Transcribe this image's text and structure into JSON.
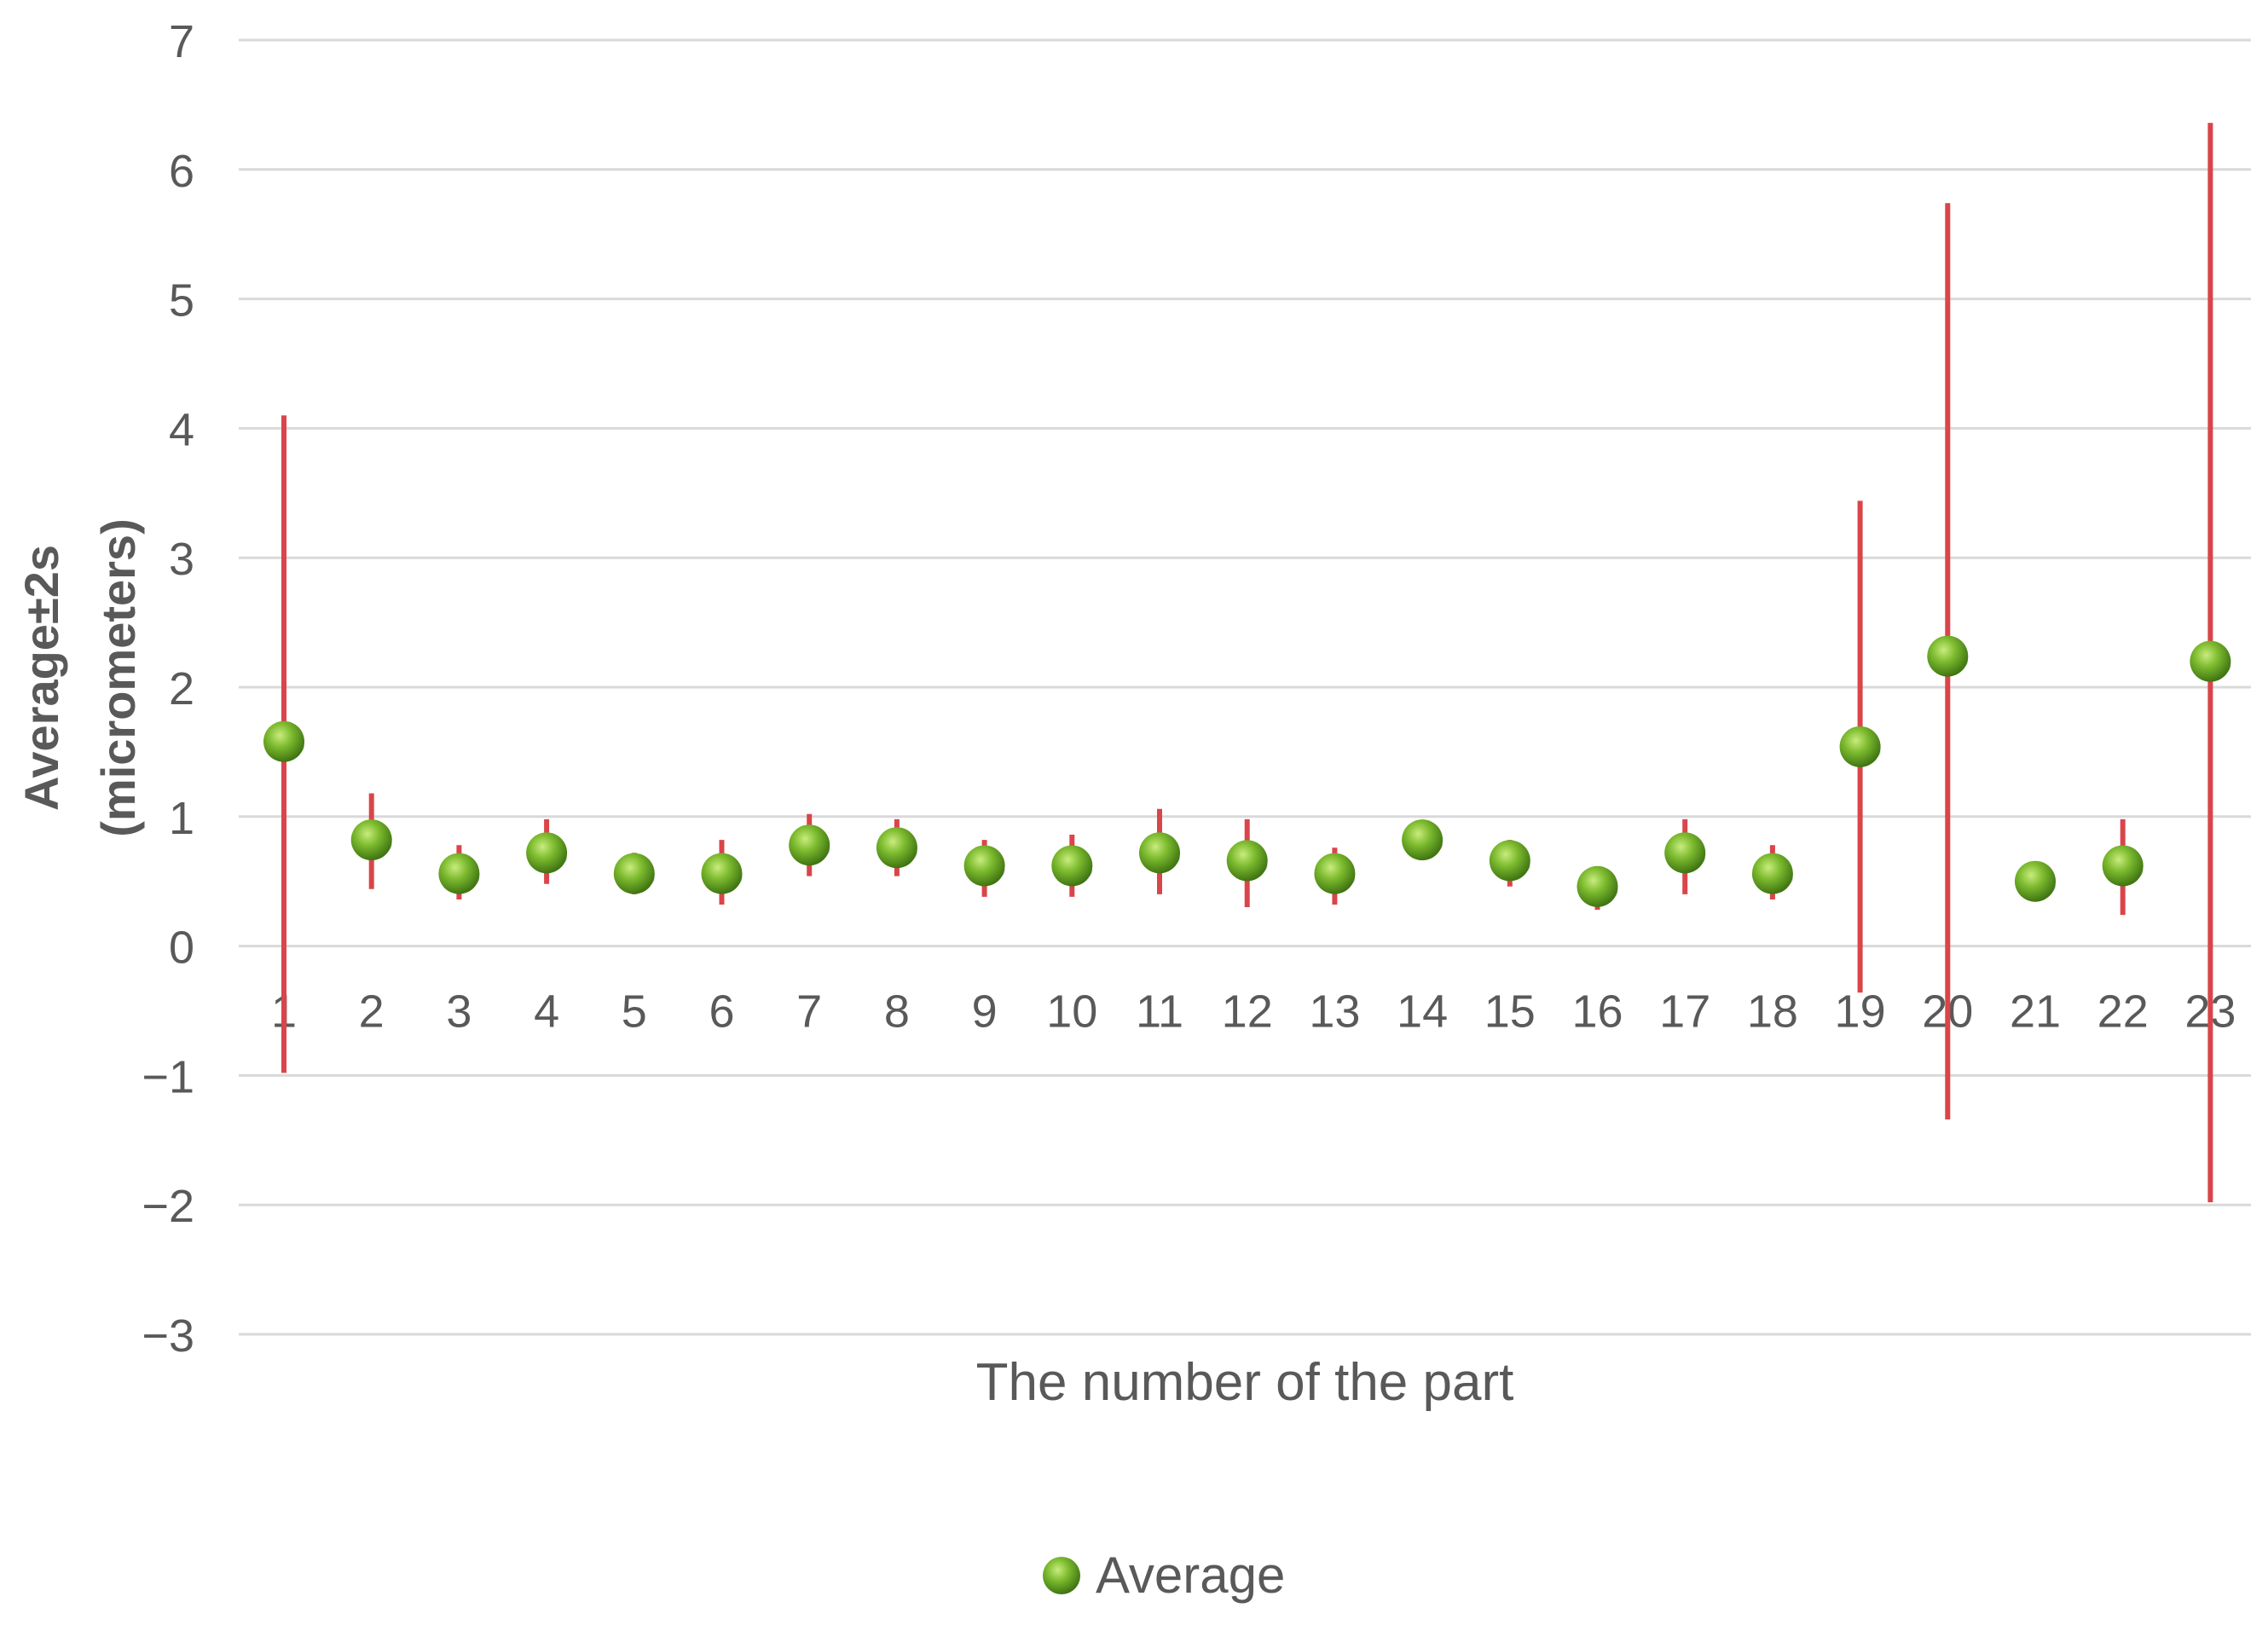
{
  "chart_data": {
    "type": "scatter",
    "xlabel": "The number of the part",
    "ylabel_line1": "Average±2s",
    "ylabel_line2": "(micrometers)",
    "ylim": [
      -3,
      7
    ],
    "yticks": [
      7,
      6,
      5,
      4,
      3,
      2,
      1,
      0,
      -1,
      -2,
      -3
    ],
    "ytick_labels": [
      "7",
      "6",
      "5",
      "4",
      "3",
      "2",
      "1",
      "0",
      "−1",
      "−2",
      "−3"
    ],
    "grid": true,
    "legend_position": "bottom",
    "colors": {
      "marker": "#6aa82a",
      "error_bar": "#d9454a",
      "grid": "#d9d9d9",
      "text": "#595959"
    },
    "series": [
      {
        "name": "Average",
        "x": [
          1,
          2,
          3,
          4,
          5,
          6,
          7,
          8,
          9,
          10,
          11,
          12,
          13,
          14,
          15,
          16,
          17,
          18,
          19,
          20,
          21,
          22,
          23
        ],
        "y": [
          1.58,
          0.82,
          0.56,
          0.72,
          0.56,
          0.56,
          0.78,
          0.76,
          0.62,
          0.62,
          0.72,
          0.66,
          0.56,
          0.82,
          0.66,
          0.46,
          0.72,
          0.56,
          1.54,
          2.24,
          0.5,
          0.62,
          2.2
        ],
        "err_low": [
          -0.98,
          0.44,
          0.36,
          0.48,
          0.4,
          0.32,
          0.54,
          0.54,
          0.38,
          0.38,
          0.4,
          0.3,
          0.32,
          0.82,
          0.46,
          0.28,
          0.4,
          0.36,
          -0.36,
          -1.34,
          0.48,
          0.24,
          -1.98
        ],
        "err_high": [
          4.1,
          1.18,
          0.78,
          0.98,
          0.72,
          0.82,
          1.02,
          0.98,
          0.82,
          0.86,
          1.06,
          0.98,
          0.76,
          0.82,
          0.82,
          0.56,
          0.98,
          0.78,
          3.44,
          5.74,
          0.56,
          0.98,
          6.36
        ]
      }
    ]
  }
}
